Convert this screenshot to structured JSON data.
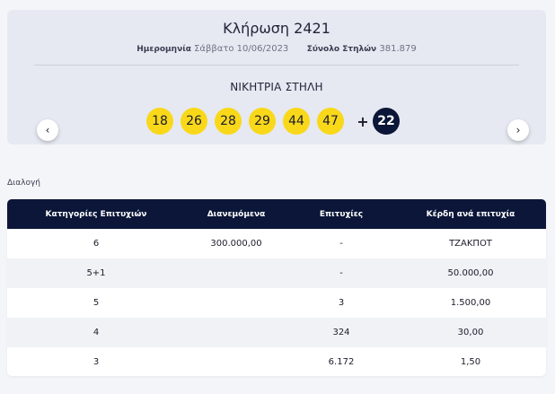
{
  "draw": {
    "title": "Κλήρωση 2421",
    "date_label": "Ημερομηνία",
    "date_value": "Σάββατο 10/06/2023",
    "columns_label": "Σύνολο Στηλών",
    "columns_value": "381.879",
    "winning_label": "ΝΙΚΗΤΡΙΑ ΣΤΗΛΗ",
    "numbers": [
      "18",
      "26",
      "28",
      "29",
      "44",
      "47"
    ],
    "plus": "+",
    "bonus": "22",
    "prev_icon": "chevron-left-icon",
    "next_icon": "chevron-right-icon",
    "colors": {
      "ball": "#f9d81a",
      "bonus_ball": "#0b1638",
      "header": "#0b1638"
    }
  },
  "section": {
    "label": "Διαλογή"
  },
  "table": {
    "headers": [
      "Κατηγορίες Επιτυχιών",
      "Διανεμόμενα",
      "Επιτυχίες",
      "Κέρδη ανά επιτυχία"
    ],
    "rows": [
      [
        "6",
        "300.000,00",
        "-",
        "ΤΖΑΚΠΟΤ"
      ],
      [
        "5+1",
        "",
        "-",
        "50.000,00"
      ],
      [
        "5",
        "",
        "3",
        "1.500,00"
      ],
      [
        "4",
        "",
        "324",
        "30,00"
      ],
      [
        "3",
        "",
        "6.172",
        "1,50"
      ]
    ]
  }
}
